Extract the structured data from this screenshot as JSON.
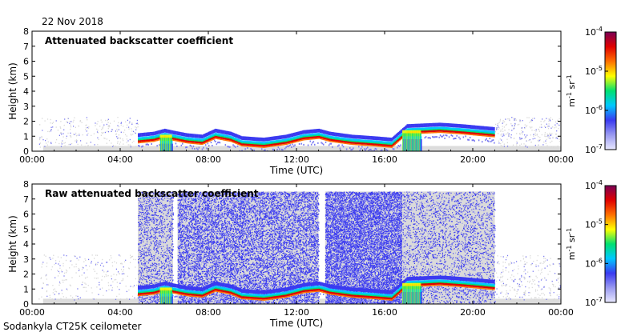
{
  "date": "22 Nov 2018",
  "footer": "Sodankyla CT25K ceilometer",
  "colors": {
    "colorbar_stops": [
      "#e8e8ff",
      "#9a9af0",
      "#3a3af0",
      "#00c8ff",
      "#00e070",
      "#ffff00",
      "#ff7000",
      "#e00000",
      "#7a0055"
    ]
  },
  "chart_data": [
    {
      "type": "heatmap",
      "title": "Attenuated backscatter coefficient",
      "xlabel": "Time (UTC)",
      "ylabel": "Height (km)",
      "x_ticks": [
        "00:00",
        "04:00",
        "08:00",
        "12:00",
        "16:00",
        "20:00",
        "00:00"
      ],
      "y_ticks": [
        "0",
        "1",
        "2",
        "3",
        "4",
        "5",
        "6",
        "7",
        "8"
      ],
      "xlim": [
        0,
        24
      ],
      "ylim": [
        0,
        8
      ],
      "colorbar": {
        "label": "m-1 sr-1",
        "ticks": [
          "10-7",
          "10-6",
          "10-5",
          "10-4"
        ],
        "scale": "log",
        "range": [
          1e-07,
          0.0001
        ]
      },
      "cloud_layer": [
        {
          "t": 4.8,
          "h": 0.6
        },
        {
          "t": 5.5,
          "h": 0.7
        },
        {
          "t": 6.0,
          "h": 0.9
        },
        {
          "t": 6.3,
          "h": 0.8
        },
        {
          "t": 7.0,
          "h": 0.6
        },
        {
          "t": 7.7,
          "h": 0.5
        },
        {
          "t": 8.3,
          "h": 0.9
        },
        {
          "t": 9.0,
          "h": 0.7
        },
        {
          "t": 9.5,
          "h": 0.4
        },
        {
          "t": 10.5,
          "h": 0.3
        },
        {
          "t": 11.5,
          "h": 0.5
        },
        {
          "t": 12.3,
          "h": 0.8
        },
        {
          "t": 13.0,
          "h": 0.9
        },
        {
          "t": 13.5,
          "h": 0.7
        },
        {
          "t": 14.5,
          "h": 0.5
        },
        {
          "t": 15.5,
          "h": 0.4
        },
        {
          "t": 16.3,
          "h": 0.3
        },
        {
          "t": 17.0,
          "h": 1.2
        },
        {
          "t": 18.5,
          "h": 1.3
        },
        {
          "t": 19.5,
          "h": 1.2
        },
        {
          "t": 21.0,
          "h": 1.0
        }
      ]
    },
    {
      "type": "heatmap",
      "title": "Raw attenuated backscatter coefficient",
      "xlabel": "Time (UTC)",
      "ylabel": "Height (km)",
      "x_ticks": [
        "00:00",
        "04:00",
        "08:00",
        "12:00",
        "16:00",
        "20:00",
        "00:00"
      ],
      "y_ticks": [
        "0",
        "1",
        "2",
        "3",
        "4",
        "5",
        "6",
        "7",
        "8"
      ],
      "xlim": [
        0,
        24
      ],
      "ylim": [
        0,
        8
      ],
      "colorbar": {
        "label": "m-1 sr-1",
        "ticks": [
          "10-7",
          "10-6",
          "10-5",
          "10-4"
        ],
        "scale": "log",
        "range": [
          1e-07,
          0.0001
        ]
      },
      "noise_blocks": [
        {
          "t0": 4.8,
          "t1": 6.4,
          "density": 0.25
        },
        {
          "t0": 6.6,
          "t1": 13.0,
          "density": 0.55
        },
        {
          "t0": 13.3,
          "t1": 16.8,
          "density": 0.75
        },
        {
          "t0": 16.8,
          "t1": 21.0,
          "density": 0.18
        }
      ],
      "cloud_layer": [
        {
          "t": 4.8,
          "h": 0.6
        },
        {
          "t": 5.5,
          "h": 0.7
        },
        {
          "t": 6.0,
          "h": 0.9
        },
        {
          "t": 6.3,
          "h": 0.8
        },
        {
          "t": 7.0,
          "h": 0.6
        },
        {
          "t": 7.7,
          "h": 0.5
        },
        {
          "t": 8.3,
          "h": 0.9
        },
        {
          "t": 9.0,
          "h": 0.7
        },
        {
          "t": 9.5,
          "h": 0.4
        },
        {
          "t": 10.5,
          "h": 0.3
        },
        {
          "t": 11.5,
          "h": 0.5
        },
        {
          "t": 12.3,
          "h": 0.8
        },
        {
          "t": 13.0,
          "h": 0.9
        },
        {
          "t": 13.5,
          "h": 0.7
        },
        {
          "t": 14.5,
          "h": 0.5
        },
        {
          "t": 15.5,
          "h": 0.4
        },
        {
          "t": 16.3,
          "h": 0.3
        },
        {
          "t": 17.0,
          "h": 1.2
        },
        {
          "t": 18.5,
          "h": 1.3
        },
        {
          "t": 19.5,
          "h": 1.2
        },
        {
          "t": 21.0,
          "h": 1.0
        }
      ]
    }
  ]
}
